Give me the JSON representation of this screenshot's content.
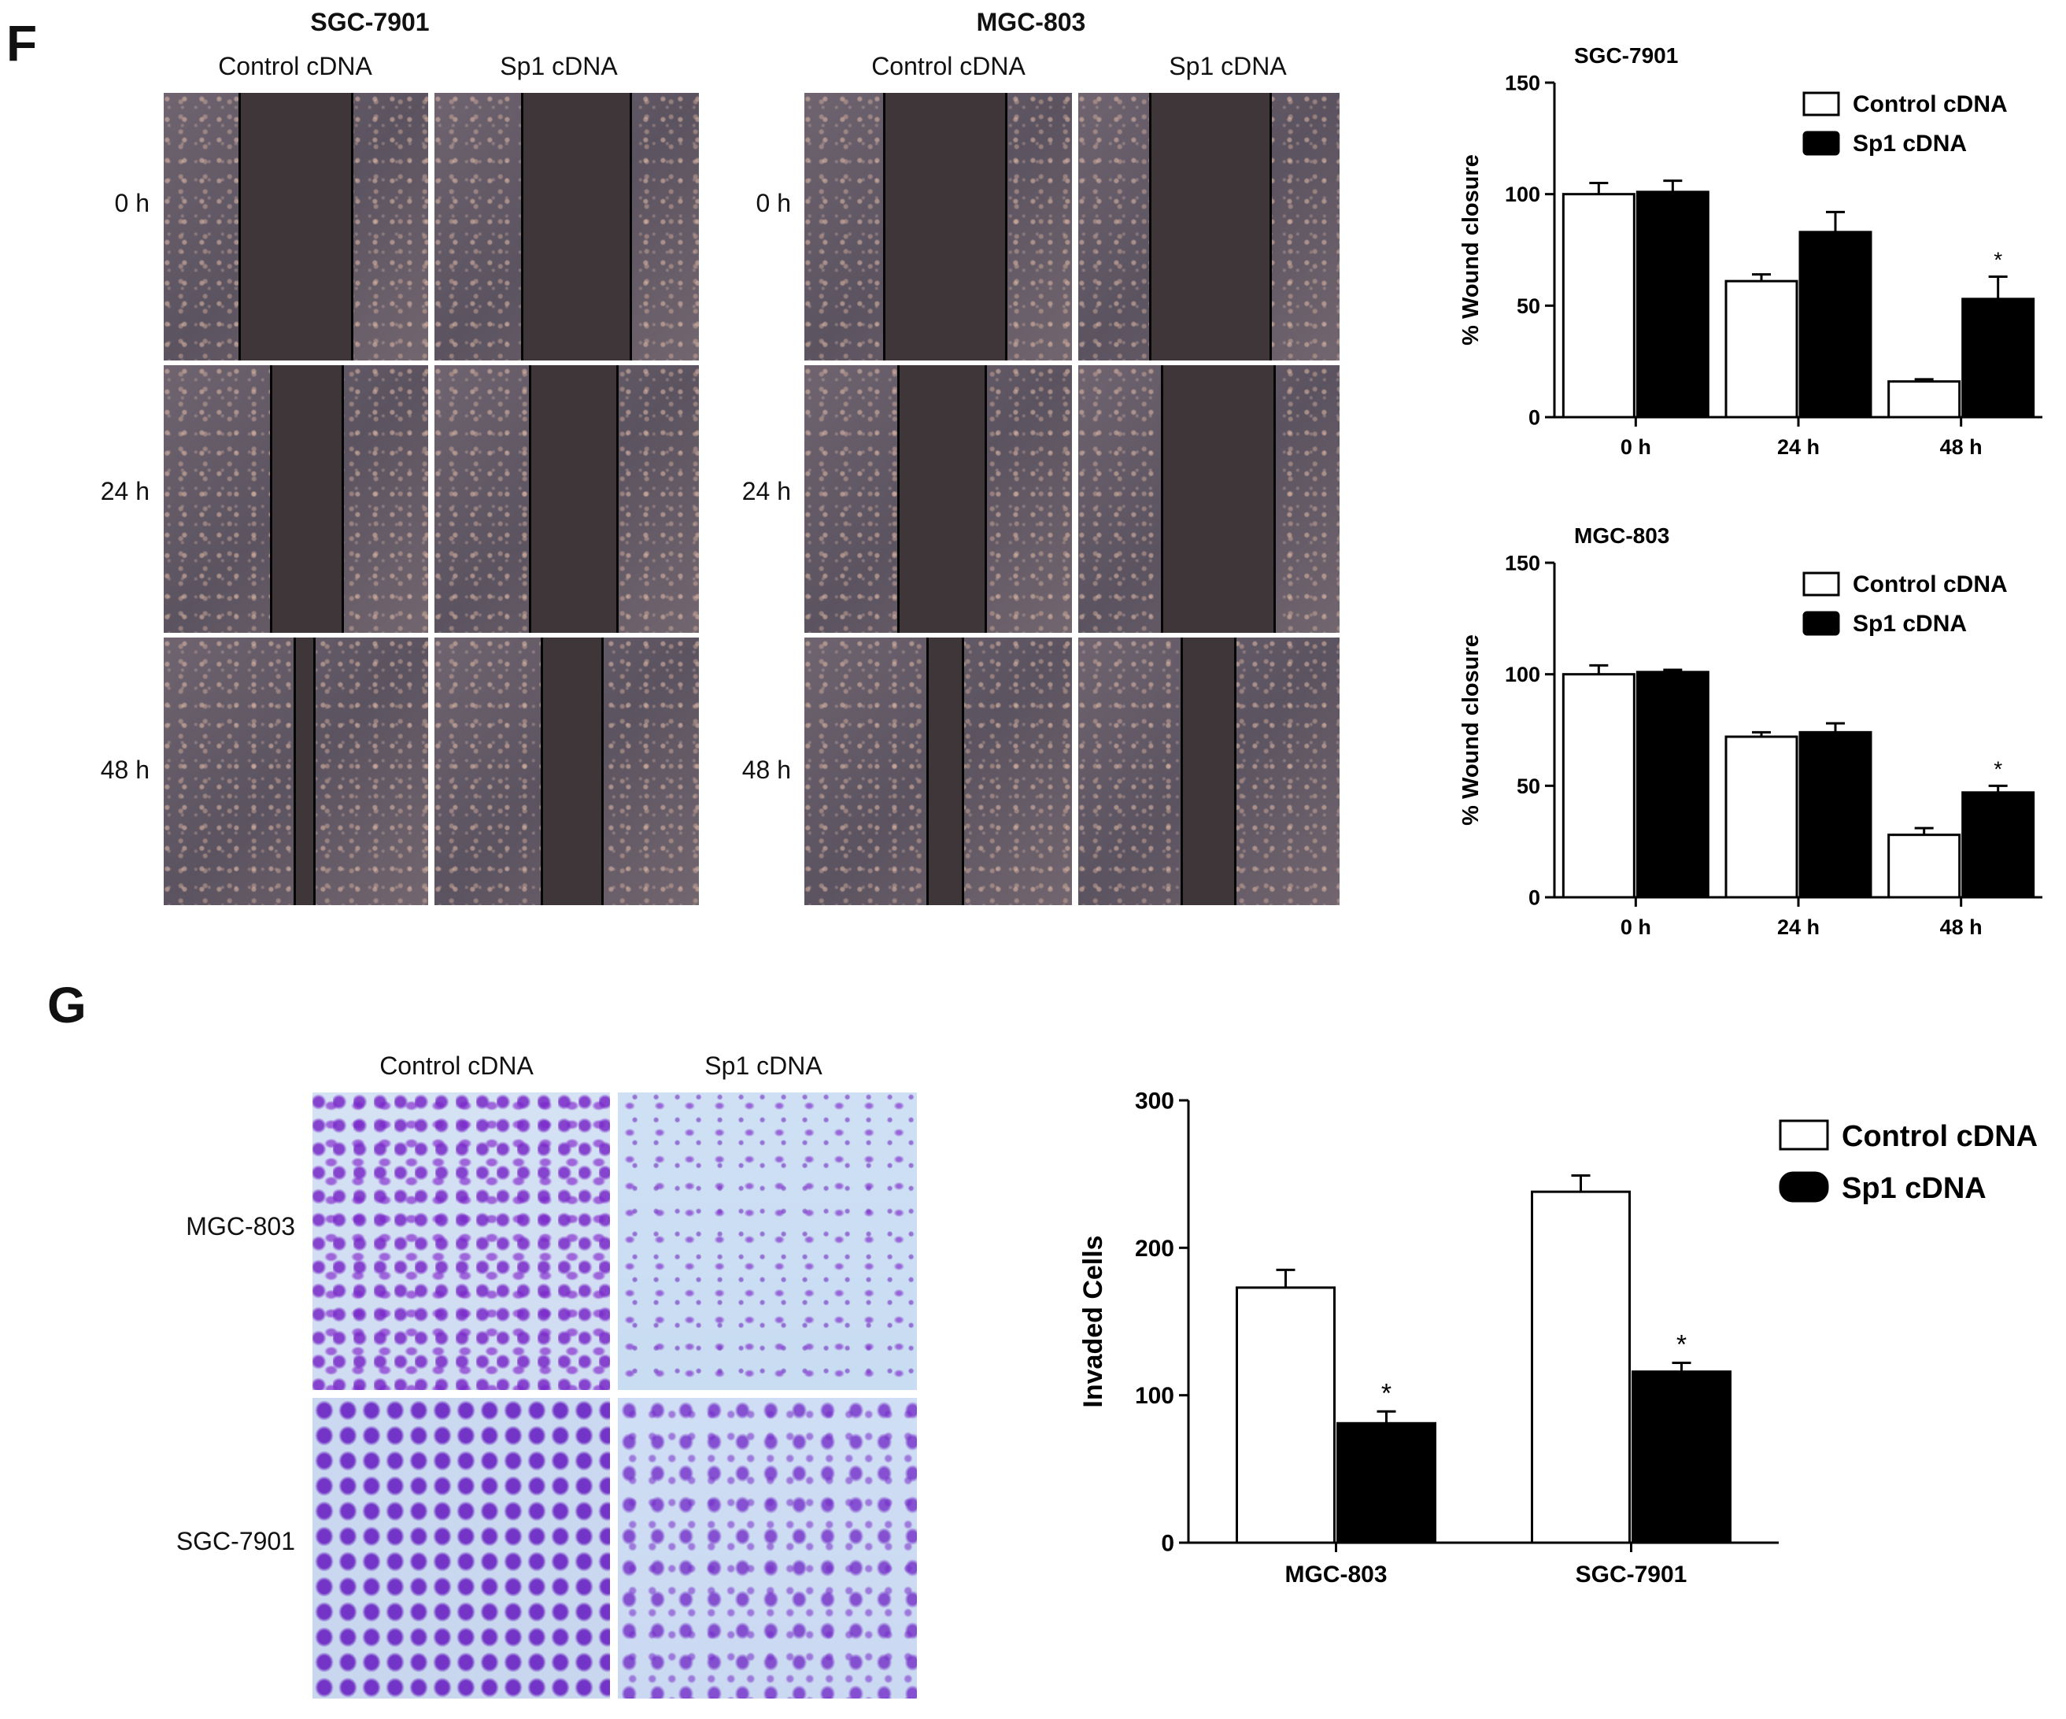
{
  "panel_f": {
    "letter": "F",
    "group1": {
      "title": "SGC-7901",
      "col1": "Control  cDNA",
      "col2": "Sp1 cDNA"
    },
    "group2": {
      "title": "MGC-803",
      "col1": "Control  cDNA",
      "col2": "Sp1 cDNA"
    },
    "rows": [
      "0 h",
      "24 h",
      "48 h"
    ]
  },
  "panel_g": {
    "letter": "G",
    "col1": "Control  cDNA",
    "col2": "Sp1 cDNA",
    "rows": [
      "MGC-803",
      "SGC-7901"
    ]
  },
  "chart_data": [
    {
      "type": "bar",
      "title": "SGC-7901",
      "ylabel": "% Wound closure",
      "xlabel": "",
      "categories": [
        "0 h",
        "24 h",
        "48 h"
      ],
      "ylim": [
        0,
        150
      ],
      "yticks": [
        0,
        50,
        100,
        150
      ],
      "series": [
        {
          "name": "Control cDNA",
          "values": [
            100,
            61,
            16
          ],
          "errors": [
            5,
            3,
            1
          ],
          "fill": "#ffffff"
        },
        {
          "name": "Sp1 cDNA",
          "values": [
            101,
            83,
            53
          ],
          "errors": [
            5,
            9,
            10
          ],
          "fill": "#000000"
        }
      ],
      "annotations": [
        {
          "category": "48 h",
          "series": "Sp1 cDNA",
          "text": "*"
        }
      ],
      "legend": "top-right"
    },
    {
      "type": "bar",
      "title": "MGC-803",
      "ylabel": "% Wound closure",
      "xlabel": "",
      "categories": [
        "0 h",
        "24 h",
        "48 h"
      ],
      "ylim": [
        0,
        150
      ],
      "yticks": [
        0,
        50,
        100,
        150
      ],
      "series": [
        {
          "name": "Control cDNA",
          "values": [
            100,
            72,
            28
          ],
          "errors": [
            4,
            2,
            3
          ],
          "fill": "#ffffff"
        },
        {
          "name": "Sp1 cDNA",
          "values": [
            101,
            74,
            47
          ],
          "errors": [
            1,
            4,
            3
          ],
          "fill": "#000000"
        }
      ],
      "annotations": [
        {
          "category": "48 h",
          "series": "Sp1 cDNA",
          "text": "*"
        }
      ],
      "legend": "top-right"
    },
    {
      "type": "bar",
      "title": "",
      "ylabel": "Invaded Cells",
      "xlabel": "",
      "categories": [
        "MGC-803",
        "SGC-7901"
      ],
      "ylim": [
        0,
        300
      ],
      "yticks": [
        0,
        100,
        200,
        300
      ],
      "series": [
        {
          "name": "Control cDNA",
          "values": [
            173,
            238
          ],
          "errors": [
            12,
            11
          ],
          "fill": "#ffffff"
        },
        {
          "name": "Sp1 cDNA",
          "values": [
            81,
            116
          ],
          "errors": [
            8,
            6
          ],
          "fill": "#000000"
        }
      ],
      "annotations": [
        {
          "category": "MGC-803",
          "series": "Sp1 cDNA",
          "text": "*"
        },
        {
          "category": "SGC-7901",
          "series": "Sp1 cDNA",
          "text": "*"
        }
      ],
      "legend": "top-right"
    }
  ]
}
